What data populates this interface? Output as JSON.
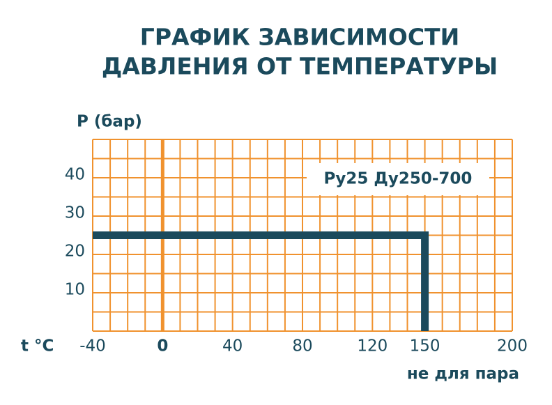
{
  "chart_data": {
    "type": "line",
    "title": [
      "ГРАФИК ЗАВИСИМОСТИ",
      "ДАВЛЕНИЯ ОТ ТЕМПЕРАТУРЫ"
    ],
    "y_label": "P (бар)",
    "x_label": "t °C",
    "x_note": "не для пара",
    "annotation": "Ру25 Ду250-700",
    "x": [
      -40,
      150,
      150
    ],
    "series": [
      {
        "color": "#1b4a5c",
        "values": [
          25,
          25,
          0
        ]
      }
    ],
    "xlim": [
      -40,
      200
    ],
    "ylim": [
      0,
      50
    ],
    "xticks": [
      -40,
      0,
      40,
      80,
      120,
      150,
      200
    ],
    "yticks": [
      10,
      20,
      30,
      40
    ],
    "xgrid": [
      -40,
      -30,
      -20,
      -10,
      0,
      10,
      20,
      30,
      40,
      50,
      60,
      70,
      80,
      90,
      100,
      110,
      120,
      130,
      140,
      150,
      160,
      170,
      180,
      190,
      200
    ],
    "ygrid": [
      0,
      5,
      10,
      15,
      20,
      25,
      30,
      35,
      40,
      45,
      50
    ],
    "grid_color": "#f0922e",
    "highlight_x": 0
  }
}
